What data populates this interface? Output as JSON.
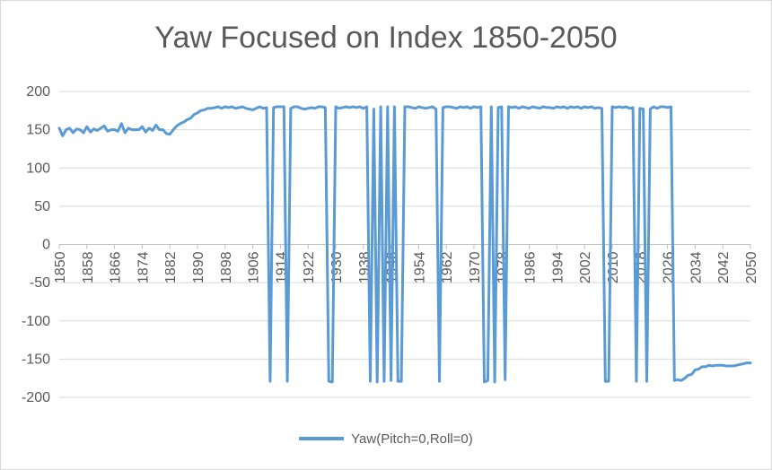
{
  "chart_data": {
    "type": "line",
    "title": "Yaw Focused on Index 1850-2050",
    "xlabel": "",
    "ylabel": "",
    "xlim": [
      1850,
      2050
    ],
    "ylim": [
      -200,
      200
    ],
    "y_ticks": [
      200,
      150,
      100,
      50,
      0,
      -50,
      -100,
      -150,
      -200
    ],
    "x_ticks": [
      1850,
      1858,
      1866,
      1874,
      1882,
      1890,
      1898,
      1906,
      1914,
      1922,
      1930,
      1938,
      1946,
      1954,
      1962,
      1970,
      1978,
      1986,
      1994,
      2002,
      2010,
      2018,
      2026,
      2034,
      2042,
      2050
    ],
    "grid": true,
    "legend_position": "bottom",
    "colors": {
      "series": "#5b9bd5",
      "grid": "#d9d9d9",
      "text": "#595959"
    },
    "series": [
      {
        "name": "Yaw(Pitch=0,Roll=0)",
        "points": [
          [
            1850,
            152
          ],
          [
            1851,
            142
          ],
          [
            1852,
            150
          ],
          [
            1853,
            152
          ],
          [
            1854,
            146
          ],
          [
            1855,
            151
          ],
          [
            1856,
            150
          ],
          [
            1857,
            146
          ],
          [
            1858,
            154
          ],
          [
            1859,
            147
          ],
          [
            1860,
            151
          ],
          [
            1861,
            149
          ],
          [
            1862,
            152
          ],
          [
            1863,
            155
          ],
          [
            1864,
            148
          ],
          [
            1865,
            150
          ],
          [
            1866,
            150
          ],
          [
            1867,
            148
          ],
          [
            1868,
            158
          ],
          [
            1869,
            146
          ],
          [
            1870,
            152
          ],
          [
            1871,
            150
          ],
          [
            1872,
            150
          ],
          [
            1873,
            150
          ],
          [
            1874,
            154
          ],
          [
            1875,
            147
          ],
          [
            1876,
            152
          ],
          [
            1877,
            149
          ],
          [
            1878,
            156
          ],
          [
            1879,
            150
          ],
          [
            1880,
            150
          ],
          [
            1881,
            145
          ],
          [
            1882,
            144
          ],
          [
            1883,
            150
          ],
          [
            1884,
            155
          ],
          [
            1885,
            158
          ],
          [
            1886,
            160
          ],
          [
            1887,
            163
          ],
          [
            1888,
            165
          ],
          [
            1889,
            170
          ],
          [
            1890,
            172
          ],
          [
            1891,
            175
          ],
          [
            1892,
            176
          ],
          [
            1893,
            178
          ],
          [
            1894,
            178
          ],
          [
            1895,
            179
          ],
          [
            1896,
            180
          ],
          [
            1897,
            178
          ],
          [
            1898,
            180
          ],
          [
            1899,
            179
          ],
          [
            1900,
            180
          ],
          [
            1901,
            178
          ],
          [
            1902,
            179
          ],
          [
            1903,
            180
          ],
          [
            1904,
            178
          ],
          [
            1905,
            177
          ],
          [
            1906,
            176
          ],
          [
            1907,
            178
          ],
          [
            1908,
            180
          ],
          [
            1909,
            178
          ],
          [
            1910,
            179
          ],
          [
            1911,
            -179
          ],
          [
            1912,
            179
          ],
          [
            1913,
            180
          ],
          [
            1914,
            180
          ],
          [
            1915,
            180
          ],
          [
            1916,
            -179
          ],
          [
            1917,
            178
          ],
          [
            1918,
            180
          ],
          [
            1919,
            180
          ],
          [
            1920,
            178
          ],
          [
            1921,
            177
          ],
          [
            1922,
            178
          ],
          [
            1923,
            179
          ],
          [
            1924,
            178
          ],
          [
            1925,
            180
          ],
          [
            1926,
            180
          ],
          [
            1927,
            179
          ],
          [
            1928,
            -179
          ],
          [
            1929,
            -180
          ],
          [
            1930,
            180
          ],
          [
            1931,
            178
          ],
          [
            1932,
            179
          ],
          [
            1933,
            180
          ],
          [
            1934,
            179
          ],
          [
            1935,
            180
          ],
          [
            1936,
            179
          ],
          [
            1937,
            180
          ],
          [
            1938,
            178
          ],
          [
            1939,
            180
          ],
          [
            1940,
            -179
          ],
          [
            1941,
            177
          ],
          [
            1942,
            -180
          ],
          [
            1943,
            180
          ],
          [
            1944,
            -179
          ],
          [
            1945,
            180
          ],
          [
            1946,
            -178
          ],
          [
            1947,
            180
          ],
          [
            1948,
            -179
          ],
          [
            1949,
            -179
          ],
          [
            1950,
            180
          ],
          [
            1951,
            180
          ],
          [
            1952,
            179
          ],
          [
            1953,
            178
          ],
          [
            1954,
            180
          ],
          [
            1955,
            179
          ],
          [
            1956,
            178
          ],
          [
            1957,
            179
          ],
          [
            1958,
            180
          ],
          [
            1959,
            177
          ],
          [
            1960,
            -179
          ],
          [
            1961,
            179
          ],
          [
            1962,
            180
          ],
          [
            1963,
            180
          ],
          [
            1964,
            179
          ],
          [
            1965,
            178
          ],
          [
            1966,
            180
          ],
          [
            1967,
            179
          ],
          [
            1968,
            180
          ],
          [
            1969,
            178
          ],
          [
            1970,
            180
          ],
          [
            1971,
            179
          ],
          [
            1972,
            180
          ],
          [
            1973,
            -180
          ],
          [
            1974,
            -178
          ],
          [
            1975,
            180
          ],
          [
            1976,
            -180
          ],
          [
            1977,
            179
          ],
          [
            1978,
            180
          ],
          [
            1979,
            -177
          ],
          [
            1980,
            180
          ],
          [
            1981,
            179
          ],
          [
            1982,
            180
          ],
          [
            1983,
            178
          ],
          [
            1984,
            180
          ],
          [
            1985,
            179
          ],
          [
            1986,
            178
          ],
          [
            1987,
            180
          ],
          [
            1988,
            179
          ],
          [
            1989,
            178
          ],
          [
            1990,
            180
          ],
          [
            1991,
            179
          ],
          [
            1992,
            179
          ],
          [
            1993,
            178
          ],
          [
            1994,
            180
          ],
          [
            1995,
            179
          ],
          [
            1996,
            180
          ],
          [
            1997,
            178
          ],
          [
            1998,
            180
          ],
          [
            1999,
            179
          ],
          [
            2000,
            180
          ],
          [
            2001,
            178
          ],
          [
            2002,
            180
          ],
          [
            2003,
            179
          ],
          [
            2004,
            180
          ],
          [
            2005,
            178
          ],
          [
            2006,
            179
          ],
          [
            2007,
            178
          ],
          [
            2008,
            -179
          ],
          [
            2009,
            -179
          ],
          [
            2010,
            180
          ],
          [
            2011,
            179
          ],
          [
            2012,
            180
          ],
          [
            2013,
            179
          ],
          [
            2014,
            180
          ],
          [
            2015,
            178
          ],
          [
            2016,
            179
          ],
          [
            2017,
            -179
          ],
          [
            2018,
            178
          ],
          [
            2019,
            177
          ],
          [
            2020,
            -179
          ],
          [
            2021,
            177
          ],
          [
            2022,
            180
          ],
          [
            2023,
            178
          ],
          [
            2024,
            180
          ],
          [
            2025,
            180
          ],
          [
            2026,
            179
          ],
          [
            2027,
            180
          ],
          [
            2028,
            -178
          ],
          [
            2029,
            -177
          ],
          [
            2030,
            -178
          ],
          [
            2031,
            -175
          ],
          [
            2032,
            -171
          ],
          [
            2033,
            -170
          ],
          [
            2034,
            -164
          ],
          [
            2035,
            -163
          ],
          [
            2036,
            -160
          ],
          [
            2037,
            -160
          ],
          [
            2038,
            -158
          ],
          [
            2039,
            -159
          ],
          [
            2040,
            -158
          ],
          [
            2041,
            -158
          ],
          [
            2042,
            -158
          ],
          [
            2043,
            -159
          ],
          [
            2044,
            -159
          ],
          [
            2045,
            -159
          ],
          [
            2046,
            -158
          ],
          [
            2047,
            -157
          ],
          [
            2048,
            -156
          ],
          [
            2049,
            -155
          ],
          [
            2050,
            -155
          ]
        ]
      }
    ]
  }
}
